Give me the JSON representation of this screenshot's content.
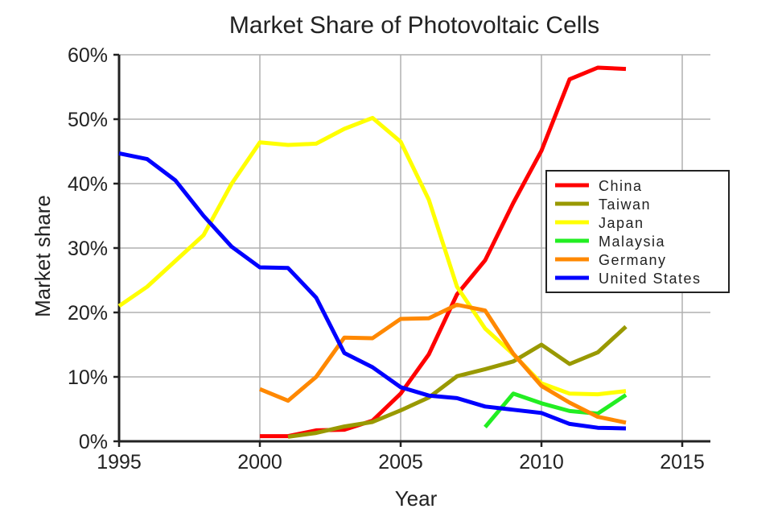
{
  "chart_data": {
    "type": "line",
    "title": "Market Share of Photovoltaic Cells",
    "xlabel": "Year",
    "ylabel": "Market share",
    "xlim": [
      1995,
      2016
    ],
    "ylim": [
      0,
      60
    ],
    "x_ticks": [
      1995,
      2000,
      2005,
      2010,
      2015
    ],
    "y_ticks": [
      0,
      10,
      20,
      30,
      40,
      50,
      60
    ],
    "y_tick_labels": [
      "0%",
      "10%",
      "20%",
      "30%",
      "40%",
      "50%",
      "60%"
    ],
    "grid": true,
    "legend_position": "right",
    "series": [
      {
        "name": "China",
        "color": "#ff0000",
        "x": [
          2000,
          2001,
          2002,
          2003,
          2004,
          2005,
          2006,
          2007,
          2008,
          2009,
          2010,
          2011,
          2012,
          2013
        ],
        "values": [
          0.8,
          0.8,
          1.7,
          1.8,
          3.2,
          7.4,
          13.5,
          22.8,
          28.1,
          37.0,
          45.1,
          56.2,
          58.0,
          57.8
        ]
      },
      {
        "name": "Taiwan",
        "color": "#999900",
        "x": [
          2001,
          2002,
          2003,
          2004,
          2005,
          2006,
          2007,
          2008,
          2009,
          2010,
          2011,
          2012,
          2013
        ],
        "values": [
          0.7,
          1.3,
          2.3,
          3.0,
          4.8,
          6.8,
          10.1,
          11.2,
          12.4,
          15.0,
          12.0,
          13.8,
          17.8
        ]
      },
      {
        "name": "Japan",
        "color": "#ffff00",
        "x": [
          1995,
          1996,
          1997,
          1998,
          1999,
          2000,
          2001,
          2002,
          2003,
          2004,
          2005,
          2006,
          2007,
          2008,
          2009,
          2010,
          2011,
          2012,
          2013
        ],
        "values": [
          21.0,
          24.0,
          28.0,
          32.0,
          40.0,
          46.4,
          46.0,
          46.2,
          48.5,
          50.2,
          46.5,
          37.5,
          24.0,
          17.5,
          13.5,
          9.0,
          7.4,
          7.3,
          7.8
        ]
      },
      {
        "name": "Malaysia",
        "color": "#22ee22",
        "x": [
          2008,
          2009,
          2010,
          2011,
          2012,
          2013
        ],
        "values": [
          2.2,
          7.4,
          5.9,
          4.7,
          4.3,
          7.2
        ]
      },
      {
        "name": "Germany",
        "color": "#ff8800",
        "x": [
          2000,
          2001,
          2002,
          2003,
          2004,
          2005,
          2006,
          2007,
          2008,
          2009,
          2010,
          2011,
          2012,
          2013
        ],
        "values": [
          8.1,
          6.3,
          10.0,
          16.1,
          16.0,
          19.0,
          19.1,
          21.2,
          20.3,
          13.6,
          8.6,
          6.0,
          3.8,
          2.9
        ]
      },
      {
        "name": "United States",
        "color": "#0000ff",
        "x": [
          1995,
          1996,
          1997,
          1998,
          1999,
          2000,
          2001,
          2002,
          2003,
          2004,
          2005,
          2006,
          2007,
          2008,
          2009,
          2010,
          2011,
          2012,
          2013
        ],
        "values": [
          44.7,
          43.8,
          40.5,
          35.0,
          30.2,
          27.0,
          26.9,
          22.3,
          13.7,
          11.5,
          8.4,
          7.1,
          6.7,
          5.4,
          4.9,
          4.4,
          2.7,
          2.1,
          2.0
        ]
      }
    ]
  }
}
